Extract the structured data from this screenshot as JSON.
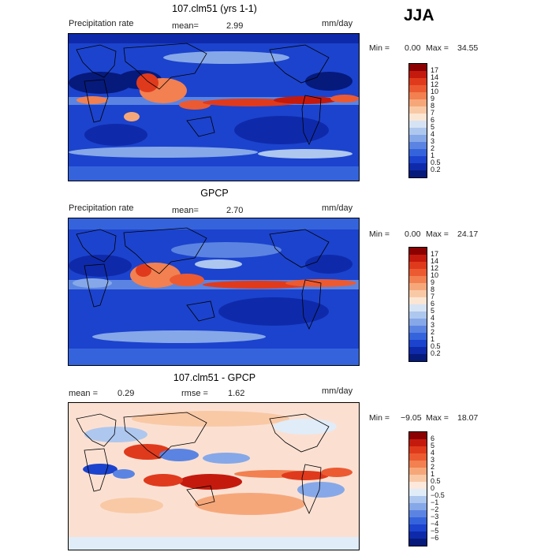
{
  "season": "JJA",
  "panels": [
    {
      "title": "107.clm51 (yrs 1-1)",
      "left_label": "Precipitation rate",
      "stat1_label": "mean=",
      "stat1_value": "2.99",
      "units": "mm/day",
      "min_label": "Min =",
      "min_value": "0.00",
      "max_label": "Max =",
      "max_value": "34.55",
      "colorbar": {
        "levels": [
          "17",
          "14",
          "12",
          "10",
          "9",
          "8",
          "7",
          "6",
          "5",
          "4",
          "3",
          "2",
          "1",
          "0.5",
          "0.2"
        ],
        "colors": [
          "#8b0000",
          "#c41a0d",
          "#e03a1c",
          "#ec5a32",
          "#f28050",
          "#f6a77a",
          "#f9c9a6",
          "#fbe6d3",
          "#d6e3f4",
          "#aec7ee",
          "#86a8e8",
          "#5b84e2",
          "#3563dc",
          "#1c43cd",
          "#0e2aaa",
          "#061a7c"
        ]
      }
    },
    {
      "title": "GPCP",
      "left_label": "Precipitation rate",
      "stat1_label": "mean=",
      "stat1_value": "2.70",
      "units": "mm/day",
      "min_label": "Min =",
      "min_value": "0.00",
      "max_label": "Max =",
      "max_value": "24.17",
      "colorbar": {
        "levels": [
          "17",
          "14",
          "12",
          "10",
          "9",
          "8",
          "7",
          "6",
          "5",
          "4",
          "3",
          "2",
          "1",
          "0.5",
          "0.2"
        ],
        "colors": [
          "#8b0000",
          "#c41a0d",
          "#e03a1c",
          "#ec5a32",
          "#f28050",
          "#f6a77a",
          "#f9c9a6",
          "#fbe6d3",
          "#d6e3f4",
          "#aec7ee",
          "#86a8e8",
          "#5b84e2",
          "#3563dc",
          "#1c43cd",
          "#0e2aaa",
          "#061a7c"
        ]
      }
    },
    {
      "title": "107.clm51 - GPCP",
      "left_label": "mean =",
      "left_value": "0.29",
      "stat1_label": "rmse =",
      "stat1_value": "1.62",
      "units": "mm/day",
      "min_label": "Min =",
      "min_value": "−9.05",
      "max_label": "Max =",
      "max_value": "18.07",
      "colorbar": {
        "levels": [
          "6",
          "5",
          "4",
          "3",
          "2",
          "1",
          "0.5",
          "0",
          "−0.5",
          "−1",
          "−2",
          "−3",
          "−4",
          "−5",
          "−6"
        ],
        "colors": [
          "#8b0000",
          "#c41a0d",
          "#e03a1c",
          "#ec5a32",
          "#f28050",
          "#f6a77a",
          "#f9c9a6",
          "#fde8dc",
          "#e0ecf8",
          "#aec7ee",
          "#86a8e8",
          "#5b84e2",
          "#3563dc",
          "#1c43cd",
          "#0e2aaa",
          "#061a7c"
        ]
      }
    }
  ]
}
